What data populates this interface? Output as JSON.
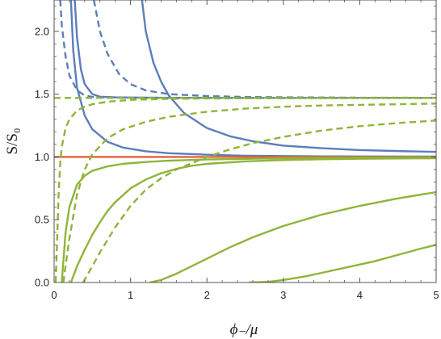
{
  "chart_data": {
    "type": "line",
    "title": "",
    "xlabel": "ϕ₋/μ",
    "ylabel": "S/S₀",
    "xlim": [
      0,
      5
    ],
    "ylim": [
      0,
      2.25
    ],
    "xticks": [
      "0",
      "1",
      "2",
      "3",
      "4",
      "5"
    ],
    "yticks": [
      "0.0",
      "0.5",
      "1.0",
      "1.5",
      "2.0"
    ],
    "grid": false,
    "legend": "none",
    "colors": {
      "blue": "#5b7fb8",
      "green": "#8fb43a",
      "red": "#e4603a"
    },
    "series": [
      {
        "color": "blue",
        "style": "solid",
        "x": [
          0.27,
          0.3,
          0.35,
          0.4,
          0.5,
          0.6,
          0.8,
          1.0,
          1.3,
          1.6,
          2.0,
          2.5,
          3.0,
          3.5,
          4.0,
          4.5,
          5.0
        ],
        "y": [
          2.25,
          1.95,
          1.7,
          1.58,
          1.5,
          1.48,
          1.475,
          1.473,
          1.472,
          1.471,
          1.471,
          1.47,
          1.47,
          1.47,
          1.47,
          1.47,
          1.47
        ]
      },
      {
        "color": "blue",
        "style": "dashed",
        "x": [
          0.08,
          0.1,
          0.15,
          0.2,
          0.3,
          0.4,
          0.5,
          0.7,
          1.0,
          1.5,
          2.0,
          3.0,
          4.0,
          5.0
        ],
        "y": [
          2.25,
          2.05,
          1.8,
          1.65,
          1.53,
          1.49,
          1.478,
          1.474,
          1.472,
          1.471,
          1.47,
          1.47,
          1.47,
          1.47
        ]
      },
      {
        "color": "blue",
        "style": "dashed",
        "x": [
          0.52,
          0.6,
          0.7,
          0.85,
          1.0,
          1.2,
          1.5,
          2.0,
          2.5,
          3.0,
          4.0,
          5.0
        ],
        "y": [
          2.25,
          2.0,
          1.82,
          1.66,
          1.58,
          1.53,
          1.5,
          1.485,
          1.478,
          1.475,
          1.472,
          1.471
        ]
      },
      {
        "color": "blue",
        "style": "solid",
        "x": [
          1.15,
          1.2,
          1.3,
          1.4,
          1.5,
          1.7,
          2.0,
          2.3,
          2.6,
          3.0,
          3.5,
          4.0,
          4.5,
          5.0
        ],
        "y": [
          2.25,
          2.0,
          1.75,
          1.6,
          1.49,
          1.35,
          1.23,
          1.165,
          1.125,
          1.09,
          1.07,
          1.055,
          1.047,
          1.04
        ]
      },
      {
        "color": "blue",
        "style": "solid",
        "x": [
          0.22,
          0.25,
          0.3,
          0.4,
          0.5,
          0.7,
          0.9,
          1.2,
          1.5,
          2.0,
          2.5,
          3.0,
          3.5,
          4.0,
          5.0
        ],
        "y": [
          2.25,
          1.85,
          1.55,
          1.33,
          1.22,
          1.12,
          1.075,
          1.045,
          1.03,
          1.018,
          1.01,
          1.007,
          1.005,
          1.004,
          1.003
        ]
      },
      {
        "color": "red",
        "style": "solid",
        "x": [
          0,
          5
        ],
        "y": [
          1.0,
          1.0
        ]
      },
      {
        "color": "green",
        "style": "dashed",
        "x": [
          0,
          5
        ],
        "y": [
          1.47,
          1.47
        ]
      },
      {
        "color": "green",
        "style": "dashed",
        "x": [
          0.02,
          0.04,
          0.06,
          0.08,
          0.1,
          0.15,
          0.2,
          0.3,
          0.4,
          0.5,
          0.7,
          1.0,
          1.5,
          2.0,
          3.0,
          4.0,
          5.0
        ],
        "y": [
          0.0,
          0.35,
          0.72,
          0.95,
          1.08,
          1.23,
          1.3,
          1.37,
          1.4,
          1.42,
          1.44,
          1.455,
          1.463,
          1.466,
          1.468,
          1.469,
          1.47
        ]
      },
      {
        "color": "green",
        "style": "dashed",
        "x": [
          0.12,
          0.2,
          0.3,
          0.4,
          0.5,
          0.7,
          0.9,
          1.2,
          1.5,
          2.0,
          2.5,
          3.0,
          3.5,
          4.0,
          4.5,
          5.0
        ],
        "y": [
          0.0,
          0.35,
          0.7,
          0.9,
          1.02,
          1.15,
          1.22,
          1.28,
          1.32,
          1.36,
          1.385,
          1.4,
          1.41,
          1.415,
          1.42,
          1.425
        ]
      },
      {
        "color": "green",
        "style": "dashed",
        "x": [
          0.38,
          0.5,
          0.6,
          0.7,
          0.8,
          1.0,
          1.2,
          1.4,
          1.6,
          1.8,
          2.0,
          2.3,
          2.6,
          3.0,
          3.5,
          4.0,
          4.5,
          5.0
        ],
        "y": [
          0.0,
          0.13,
          0.24,
          0.34,
          0.44,
          0.61,
          0.74,
          0.83,
          0.9,
          0.95,
          1.0,
          1.06,
          1.11,
          1.16,
          1.21,
          1.245,
          1.27,
          1.29
        ]
      },
      {
        "color": "green",
        "style": "solid",
        "x": [
          0.1,
          0.15,
          0.2,
          0.3,
          0.4,
          0.5,
          0.7,
          0.9,
          1.2,
          1.5,
          2.0,
          3.0,
          4.0,
          5.0
        ],
        "y": [
          0.0,
          0.4,
          0.6,
          0.78,
          0.85,
          0.89,
          0.925,
          0.945,
          0.96,
          0.97,
          0.98,
          0.99,
          0.995,
          0.997
        ]
      },
      {
        "color": "green",
        "style": "solid",
        "x": [
          0.22,
          0.3,
          0.4,
          0.5,
          0.6,
          0.7,
          0.8,
          1.0,
          1.2,
          1.4,
          1.6,
          1.8,
          2.0,
          2.5,
          3.0,
          3.5,
          4.0,
          5.0
        ],
        "y": [
          0.0,
          0.13,
          0.26,
          0.38,
          0.48,
          0.57,
          0.64,
          0.75,
          0.82,
          0.87,
          0.905,
          0.93,
          0.945,
          0.965,
          0.975,
          0.982,
          0.986,
          0.99
        ]
      },
      {
        "color": "green",
        "style": "solid",
        "x": [
          1.25,
          1.4,
          1.6,
          1.8,
          2.0,
          2.3,
          2.6,
          3.0,
          3.5,
          4.0,
          4.5,
          5.0
        ],
        "y": [
          0.0,
          0.02,
          0.07,
          0.13,
          0.19,
          0.28,
          0.36,
          0.45,
          0.54,
          0.61,
          0.67,
          0.72
        ]
      },
      {
        "color": "green",
        "style": "solid",
        "x": [
          2.55,
          2.8,
          3.0,
          3.3,
          3.6,
          3.9,
          4.2,
          4.5,
          4.8,
          5.0
        ],
        "y": [
          0.0,
          0.005,
          0.02,
          0.05,
          0.09,
          0.13,
          0.17,
          0.22,
          0.27,
          0.3
        ]
      }
    ]
  }
}
